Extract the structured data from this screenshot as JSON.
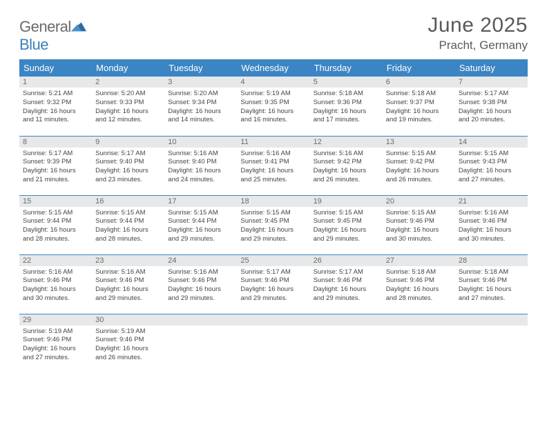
{
  "logo": {
    "word1": "General",
    "word2": "Blue"
  },
  "title": "June 2025",
  "location": "Pracht, Germany",
  "colors": {
    "header_bg": "#3b85c4",
    "header_text": "#ffffff",
    "daynum_bg": "#e6e8ea",
    "border": "#3b85c4",
    "text": "#444444",
    "logo_gray": "#6a6a6a",
    "logo_blue": "#3b7fb8"
  },
  "weekdays": [
    "Sunday",
    "Monday",
    "Tuesday",
    "Wednesday",
    "Thursday",
    "Friday",
    "Saturday"
  ],
  "weeks": [
    [
      {
        "n": "1",
        "sr": "Sunrise: 5:21 AM",
        "ss": "Sunset: 9:32 PM",
        "d1": "Daylight: 16 hours",
        "d2": "and 11 minutes."
      },
      {
        "n": "2",
        "sr": "Sunrise: 5:20 AM",
        "ss": "Sunset: 9:33 PM",
        "d1": "Daylight: 16 hours",
        "d2": "and 12 minutes."
      },
      {
        "n": "3",
        "sr": "Sunrise: 5:20 AM",
        "ss": "Sunset: 9:34 PM",
        "d1": "Daylight: 16 hours",
        "d2": "and 14 minutes."
      },
      {
        "n": "4",
        "sr": "Sunrise: 5:19 AM",
        "ss": "Sunset: 9:35 PM",
        "d1": "Daylight: 16 hours",
        "d2": "and 16 minutes."
      },
      {
        "n": "5",
        "sr": "Sunrise: 5:18 AM",
        "ss": "Sunset: 9:36 PM",
        "d1": "Daylight: 16 hours",
        "d2": "and 17 minutes."
      },
      {
        "n": "6",
        "sr": "Sunrise: 5:18 AM",
        "ss": "Sunset: 9:37 PM",
        "d1": "Daylight: 16 hours",
        "d2": "and 19 minutes."
      },
      {
        "n": "7",
        "sr": "Sunrise: 5:17 AM",
        "ss": "Sunset: 9:38 PM",
        "d1": "Daylight: 16 hours",
        "d2": "and 20 minutes."
      }
    ],
    [
      {
        "n": "8",
        "sr": "Sunrise: 5:17 AM",
        "ss": "Sunset: 9:39 PM",
        "d1": "Daylight: 16 hours",
        "d2": "and 21 minutes."
      },
      {
        "n": "9",
        "sr": "Sunrise: 5:17 AM",
        "ss": "Sunset: 9:40 PM",
        "d1": "Daylight: 16 hours",
        "d2": "and 23 minutes."
      },
      {
        "n": "10",
        "sr": "Sunrise: 5:16 AM",
        "ss": "Sunset: 9:40 PM",
        "d1": "Daylight: 16 hours",
        "d2": "and 24 minutes."
      },
      {
        "n": "11",
        "sr": "Sunrise: 5:16 AM",
        "ss": "Sunset: 9:41 PM",
        "d1": "Daylight: 16 hours",
        "d2": "and 25 minutes."
      },
      {
        "n": "12",
        "sr": "Sunrise: 5:16 AM",
        "ss": "Sunset: 9:42 PM",
        "d1": "Daylight: 16 hours",
        "d2": "and 26 minutes."
      },
      {
        "n": "13",
        "sr": "Sunrise: 5:15 AM",
        "ss": "Sunset: 9:42 PM",
        "d1": "Daylight: 16 hours",
        "d2": "and 26 minutes."
      },
      {
        "n": "14",
        "sr": "Sunrise: 5:15 AM",
        "ss": "Sunset: 9:43 PM",
        "d1": "Daylight: 16 hours",
        "d2": "and 27 minutes."
      }
    ],
    [
      {
        "n": "15",
        "sr": "Sunrise: 5:15 AM",
        "ss": "Sunset: 9:44 PM",
        "d1": "Daylight: 16 hours",
        "d2": "and 28 minutes."
      },
      {
        "n": "16",
        "sr": "Sunrise: 5:15 AM",
        "ss": "Sunset: 9:44 PM",
        "d1": "Daylight: 16 hours",
        "d2": "and 28 minutes."
      },
      {
        "n": "17",
        "sr": "Sunrise: 5:15 AM",
        "ss": "Sunset: 9:44 PM",
        "d1": "Daylight: 16 hours",
        "d2": "and 29 minutes."
      },
      {
        "n": "18",
        "sr": "Sunrise: 5:15 AM",
        "ss": "Sunset: 9:45 PM",
        "d1": "Daylight: 16 hours",
        "d2": "and 29 minutes."
      },
      {
        "n": "19",
        "sr": "Sunrise: 5:15 AM",
        "ss": "Sunset: 9:45 PM",
        "d1": "Daylight: 16 hours",
        "d2": "and 29 minutes."
      },
      {
        "n": "20",
        "sr": "Sunrise: 5:15 AM",
        "ss": "Sunset: 9:46 PM",
        "d1": "Daylight: 16 hours",
        "d2": "and 30 minutes."
      },
      {
        "n": "21",
        "sr": "Sunrise: 5:16 AM",
        "ss": "Sunset: 9:46 PM",
        "d1": "Daylight: 16 hours",
        "d2": "and 30 minutes."
      }
    ],
    [
      {
        "n": "22",
        "sr": "Sunrise: 5:16 AM",
        "ss": "Sunset: 9:46 PM",
        "d1": "Daylight: 16 hours",
        "d2": "and 30 minutes."
      },
      {
        "n": "23",
        "sr": "Sunrise: 5:16 AM",
        "ss": "Sunset: 9:46 PM",
        "d1": "Daylight: 16 hours",
        "d2": "and 29 minutes."
      },
      {
        "n": "24",
        "sr": "Sunrise: 5:16 AM",
        "ss": "Sunset: 9:46 PM",
        "d1": "Daylight: 16 hours",
        "d2": "and 29 minutes."
      },
      {
        "n": "25",
        "sr": "Sunrise: 5:17 AM",
        "ss": "Sunset: 9:46 PM",
        "d1": "Daylight: 16 hours",
        "d2": "and 29 minutes."
      },
      {
        "n": "26",
        "sr": "Sunrise: 5:17 AM",
        "ss": "Sunset: 9:46 PM",
        "d1": "Daylight: 16 hours",
        "d2": "and 29 minutes."
      },
      {
        "n": "27",
        "sr": "Sunrise: 5:18 AM",
        "ss": "Sunset: 9:46 PM",
        "d1": "Daylight: 16 hours",
        "d2": "and 28 minutes."
      },
      {
        "n": "28",
        "sr": "Sunrise: 5:18 AM",
        "ss": "Sunset: 9:46 PM",
        "d1": "Daylight: 16 hours",
        "d2": "and 27 minutes."
      }
    ],
    [
      {
        "n": "29",
        "sr": "Sunrise: 5:19 AM",
        "ss": "Sunset: 9:46 PM",
        "d1": "Daylight: 16 hours",
        "d2": "and 27 minutes."
      },
      {
        "n": "30",
        "sr": "Sunrise: 5:19 AM",
        "ss": "Sunset: 9:46 PM",
        "d1": "Daylight: 16 hours",
        "d2": "and 26 minutes."
      },
      null,
      null,
      null,
      null,
      null
    ]
  ]
}
